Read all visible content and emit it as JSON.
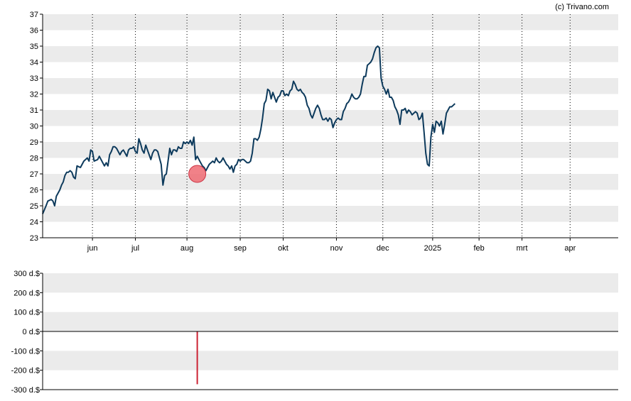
{
  "credit": "(c) Trivano.com",
  "colors": {
    "price_line": "#0d3a5c",
    "marker_fill": "#ee6b73",
    "marker_stroke": "#cc3344",
    "volume_bar": "#cc2233",
    "band_gray": "#ebebeb",
    "axis": "#000000"
  },
  "chart_data": [
    {
      "type": "line",
      "title": "",
      "xlabel": "",
      "ylabel": "",
      "ylim": [
        23,
        37
      ],
      "yticks": [
        "23",
        "24",
        "25",
        "26",
        "27",
        "28",
        "29",
        "30",
        "31",
        "32",
        "33",
        "34",
        "35",
        "36",
        "37"
      ],
      "grid": "alternating horizontal bands, dotted vertical lines at month ticks",
      "x_domain_days": [
        0,
        335
      ],
      "month_ticks": [
        {
          "label": "jun",
          "day": 29
        },
        {
          "label": "jul",
          "day": 54
        },
        {
          "label": "aug",
          "day": 84
        },
        {
          "label": "sep",
          "day": 115
        },
        {
          "label": "okt",
          "day": 140
        },
        {
          "label": "nov",
          "day": 171
        },
        {
          "label": "dec",
          "day": 198
        },
        {
          "label": "2025",
          "day": 227
        },
        {
          "label": "feb",
          "day": 254
        },
        {
          "label": "mrt",
          "day": 279
        },
        {
          "label": "apr",
          "day": 307
        }
      ],
      "series": [
        {
          "points": [
            [
              0,
              24.5
            ],
            [
              2,
              25.0
            ],
            [
              3,
              25.3
            ],
            [
              5,
              25.4
            ],
            [
              6,
              25.3
            ],
            [
              7,
              25.0
            ],
            [
              8,
              25.6
            ],
            [
              10,
              26.0
            ],
            [
              11,
              26.3
            ],
            [
              12,
              26.5
            ],
            [
              13,
              26.9
            ],
            [
              14,
              27.1
            ],
            [
              15,
              27.1
            ],
            [
              16,
              27.2
            ],
            [
              17,
              27.1
            ],
            [
              18,
              26.8
            ],
            [
              19,
              26.7
            ],
            [
              20,
              27.5
            ],
            [
              22,
              27.4
            ],
            [
              23,
              27.6
            ],
            [
              24,
              27.8
            ],
            [
              26,
              28.0
            ],
            [
              27,
              27.8
            ],
            [
              28,
              28.5
            ],
            [
              29,
              28.4
            ],
            [
              30,
              27.8
            ],
            [
              32,
              27.9
            ],
            [
              33,
              28.1
            ],
            [
              34,
              27.9
            ],
            [
              35,
              27.7
            ],
            [
              36,
              27.5
            ],
            [
              37,
              27.7
            ],
            [
              38,
              27.5
            ],
            [
              39,
              28.2
            ],
            [
              40,
              28.4
            ],
            [
              41,
              28.7
            ],
            [
              42,
              28.7
            ],
            [
              43,
              28.6
            ],
            [
              44,
              28.4
            ],
            [
              45,
              28.2
            ],
            [
              46,
              28.4
            ],
            [
              47,
              28.5
            ],
            [
              48,
              28.3
            ],
            [
              49,
              28.1
            ],
            [
              50,
              28.5
            ],
            [
              51,
              28.6
            ],
            [
              52,
              28.6
            ],
            [
              53,
              28.7
            ],
            [
              54,
              28.4
            ],
            [
              55,
              28.3
            ],
            [
              56,
              29.2
            ],
            [
              57,
              28.9
            ],
            [
              58,
              28.5
            ],
            [
              59,
              28.3
            ],
            [
              60,
              28.8
            ],
            [
              61,
              28.5
            ],
            [
              62,
              28.2
            ],
            [
              63,
              27.9
            ],
            [
              64,
              28.3
            ],
            [
              65,
              28.5
            ],
            [
              66,
              28.5
            ],
            [
              67,
              28.4
            ],
            [
              68,
              28.0
            ],
            [
              69,
              27.6
            ],
            [
              70,
              26.3
            ],
            [
              71,
              26.9
            ],
            [
              72,
              27.0
            ],
            [
              73,
              27.8
            ],
            [
              74,
              28.6
            ],
            [
              75,
              28.2
            ],
            [
              76,
              28.5
            ],
            [
              77,
              28.5
            ],
            [
              78,
              28.4
            ],
            [
              79,
              28.7
            ],
            [
              80,
              28.6
            ],
            [
              81,
              28.6
            ],
            [
              82,
              29.0
            ],
            [
              83,
              28.9
            ],
            [
              84,
              29.0
            ],
            [
              85,
              28.9
            ],
            [
              86,
              29.1
            ],
            [
              87,
              28.8
            ],
            [
              88,
              29.3
            ],
            [
              89,
              27.9
            ],
            [
              90,
              28.1
            ],
            [
              91,
              27.9
            ],
            [
              92,
              27.7
            ],
            [
              93,
              27.5
            ],
            [
              94,
              27.4
            ],
            [
              95,
              27.2
            ],
            [
              96,
              27.4
            ],
            [
              97,
              27.6
            ],
            [
              98,
              27.7
            ],
            [
              99,
              27.8
            ],
            [
              100,
              27.7
            ],
            [
              101,
              28.0
            ],
            [
              102,
              27.8
            ],
            [
              103,
              27.7
            ],
            [
              104,
              27.8
            ],
            [
              105,
              28.0
            ],
            [
              106,
              27.8
            ],
            [
              107,
              27.6
            ],
            [
              108,
              27.5
            ],
            [
              109,
              27.3
            ],
            [
              110,
              27.5
            ],
            [
              111,
              27.1
            ],
            [
              112,
              27.5
            ],
            [
              113,
              27.6
            ],
            [
              114,
              27.9
            ],
            [
              115,
              27.8
            ],
            [
              116,
              27.9
            ],
            [
              117,
              27.9
            ],
            [
              118,
              27.8
            ],
            [
              119,
              27.7
            ],
            [
              120,
              27.7
            ],
            [
              121,
              27.8
            ],
            [
              122,
              28.3
            ],
            [
              123,
              29.2
            ],
            [
              124,
              29.2
            ],
            [
              125,
              29.1
            ],
            [
              126,
              29.3
            ],
            [
              127,
              29.8
            ],
            [
              128,
              30.5
            ],
            [
              129,
              31.4
            ],
            [
              130,
              31.6
            ],
            [
              131,
              32.3
            ],
            [
              132,
              32.2
            ],
            [
              133,
              31.7
            ],
            [
              134,
              32.1
            ],
            [
              135,
              31.8
            ],
            [
              136,
              31.5
            ],
            [
              137,
              31.8
            ],
            [
              138,
              31.9
            ],
            [
              139,
              32.2
            ],
            [
              140,
              32.2
            ],
            [
              141,
              31.9
            ],
            [
              142,
              32.0
            ],
            [
              143,
              31.9
            ],
            [
              144,
              32.2
            ],
            [
              145,
              32.3
            ],
            [
              146,
              32.8
            ],
            [
              147,
              32.6
            ],
            [
              148,
              32.3
            ],
            [
              149,
              32.2
            ],
            [
              150,
              32.3
            ],
            [
              151,
              32.1
            ],
            [
              152,
              32.0
            ],
            [
              153,
              31.8
            ],
            [
              154,
              31.3
            ],
            [
              155,
              31.1
            ],
            [
              156,
              30.7
            ],
            [
              157,
              30.5
            ],
            [
              158,
              30.8
            ],
            [
              159,
              31.1
            ],
            [
              160,
              31.3
            ],
            [
              161,
              31.1
            ],
            [
              162,
              30.7
            ],
            [
              163,
              30.4
            ],
            [
              164,
              30.4
            ],
            [
              165,
              30.5
            ],
            [
              166,
              30.3
            ],
            [
              167,
              30.5
            ],
            [
              168,
              30.4
            ],
            [
              169,
              29.9
            ],
            [
              170,
              30.2
            ],
            [
              171,
              30.4
            ],
            [
              172,
              30.5
            ],
            [
              173,
              30.4
            ],
            [
              174,
              30.4
            ],
            [
              175,
              30.9
            ],
            [
              176,
              31.1
            ],
            [
              177,
              31.4
            ],
            [
              178,
              31.5
            ],
            [
              179,
              31.7
            ],
            [
              180,
              32.0
            ],
            [
              181,
              31.8
            ],
            [
              182,
              31.7
            ],
            [
              183,
              31.7
            ],
            [
              184,
              31.8
            ],
            [
              185,
              32.0
            ],
            [
              186,
              32.6
            ],
            [
              187,
              33.1
            ],
            [
              188,
              33.1
            ],
            [
              189,
              33.8
            ],
            [
              190,
              33.9
            ],
            [
              191,
              34.0
            ],
            [
              192,
              34.2
            ],
            [
              193,
              34.6
            ],
            [
              194,
              34.9
            ],
            [
              195,
              35.0
            ],
            [
              196,
              34.9
            ],
            [
              197,
              33.0
            ],
            [
              198,
              32.5
            ],
            [
              199,
              32.3
            ],
            [
              200,
              32.0
            ],
            [
              201,
              32.3
            ],
            [
              202,
              31.8
            ],
            [
              203,
              31.8
            ],
            [
              204,
              31.6
            ],
            [
              205,
              31.2
            ],
            [
              206,
              31.0
            ],
            [
              207,
              30.7
            ],
            [
              208,
              30.1
            ],
            [
              209,
              31.0
            ],
            [
              210,
              31.0
            ],
            [
              211,
              31.1
            ],
            [
              212,
              30.8
            ],
            [
              213,
              31.0
            ],
            [
              214,
              30.9
            ],
            [
              215,
              30.7
            ],
            [
              216,
              30.8
            ],
            [
              217,
              30.9
            ],
            [
              218,
              30.8
            ],
            [
              219,
              30.4
            ],
            [
              220,
              30.5
            ],
            [
              221,
              30.8
            ],
            [
              222,
              29.6
            ],
            [
              223,
              28.3
            ],
            [
              224,
              27.6
            ],
            [
              225,
              27.5
            ],
            [
              226,
              29.3
            ],
            [
              227,
              30.1
            ],
            [
              228,
              29.6
            ],
            [
              229,
              30.3
            ],
            [
              230,
              30.2
            ],
            [
              231,
              30.0
            ],
            [
              232,
              30.3
            ],
            [
              233,
              29.5
            ],
            [
              234,
              30.1
            ],
            [
              235,
              30.8
            ],
            [
              236,
              31.0
            ],
            [
              237,
              31.2
            ],
            [
              238,
              31.2
            ],
            [
              239,
              31.3
            ],
            [
              240,
              31.4
            ]
          ]
        }
      ],
      "markers": [
        {
          "day": 90,
          "value": 27.0
        }
      ]
    },
    {
      "type": "bar",
      "title": "",
      "xlabel": "",
      "ylabel": "",
      "ylim": [
        -300,
        300
      ],
      "yticks": [
        "300 d.$",
        "200 d.$",
        "100 d.$",
        "0 d.$",
        "-100 d.$",
        "-200 d.$",
        "-300 d.$"
      ],
      "ytick_values": [
        300,
        200,
        100,
        0,
        -100,
        -200,
        -300
      ],
      "grid": "alternating horizontal bands",
      "bars": [
        {
          "day": 90,
          "value": -272
        }
      ]
    }
  ]
}
